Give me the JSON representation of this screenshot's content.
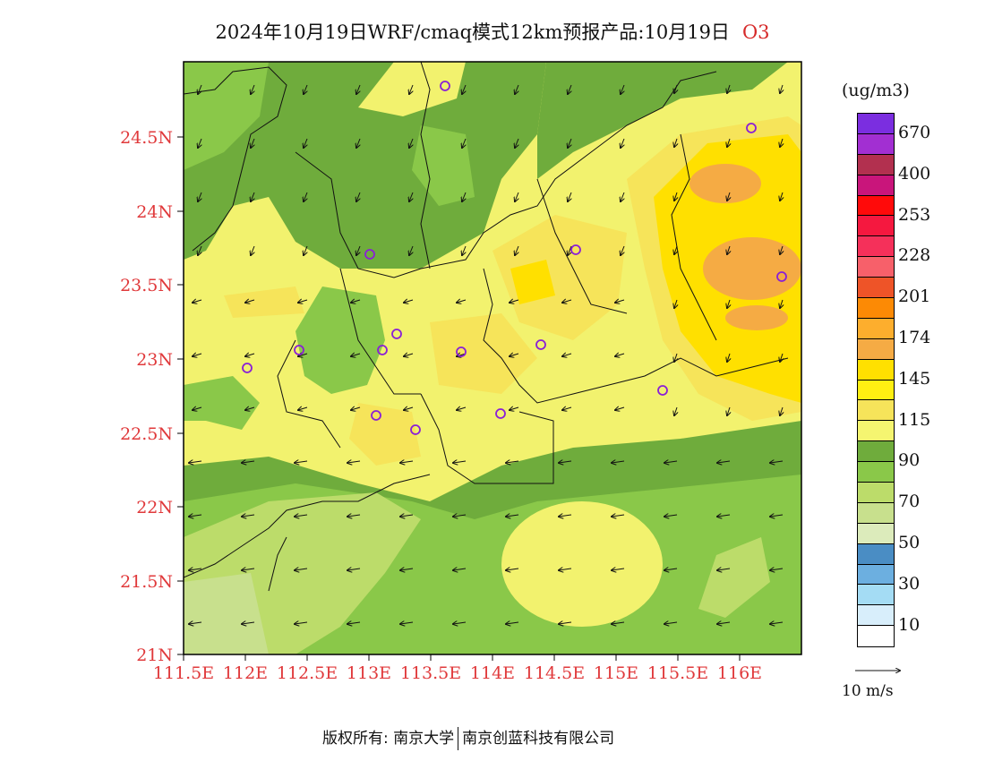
{
  "header": {
    "title": "2024年10月19日WRF/cmaq模式12km预报产品:10月19日",
    "species": "O3"
  },
  "map": {
    "lat_labels": [
      "24.5N",
      "24N",
      "23.5N",
      "23N",
      "22.5N",
      "22N",
      "21.5N",
      "21N"
    ],
    "lon_labels": [
      "111.5E",
      "112E",
      "112.5E",
      "113E",
      "113.5E",
      "114E",
      "114.5E",
      "115E",
      "115.5E",
      "116E"
    ],
    "station_marker_color": "#8a1fd6",
    "wind_arrow_color": "#111111",
    "station_count": 15
  },
  "legend": {
    "unit": "(ug/m3)",
    "colors": [
      "#7b2ee0",
      "#a22fd2",
      "#b2304f",
      "#c9157b",
      "#ff0a0a",
      "#f5183f",
      "#f5305a",
      "#f7606a",
      "#ee5428",
      "#fc8a05",
      "#fdae2d",
      "#f5ab44",
      "#ffe000",
      "#ffef12",
      "#f6e45a",
      "#f5f570",
      "#6fac3c",
      "#8ac849",
      "#bcdc6a",
      "#c8e08d",
      "#dcebbb",
      "#4a8dc4",
      "#6cafe0",
      "#a4dcf4",
      "#d8eefb",
      "#ffffff"
    ],
    "labels": [
      "670",
      "400",
      "253",
      "228",
      "201",
      "174",
      "145",
      "115",
      "90",
      "70",
      "50",
      "30",
      "10"
    ]
  },
  "wind_scale": {
    "label": "10 m/s"
  },
  "footer": {
    "copyright": "版权所有: 南京大学",
    "company": "南京创蓝科技有限公司"
  }
}
